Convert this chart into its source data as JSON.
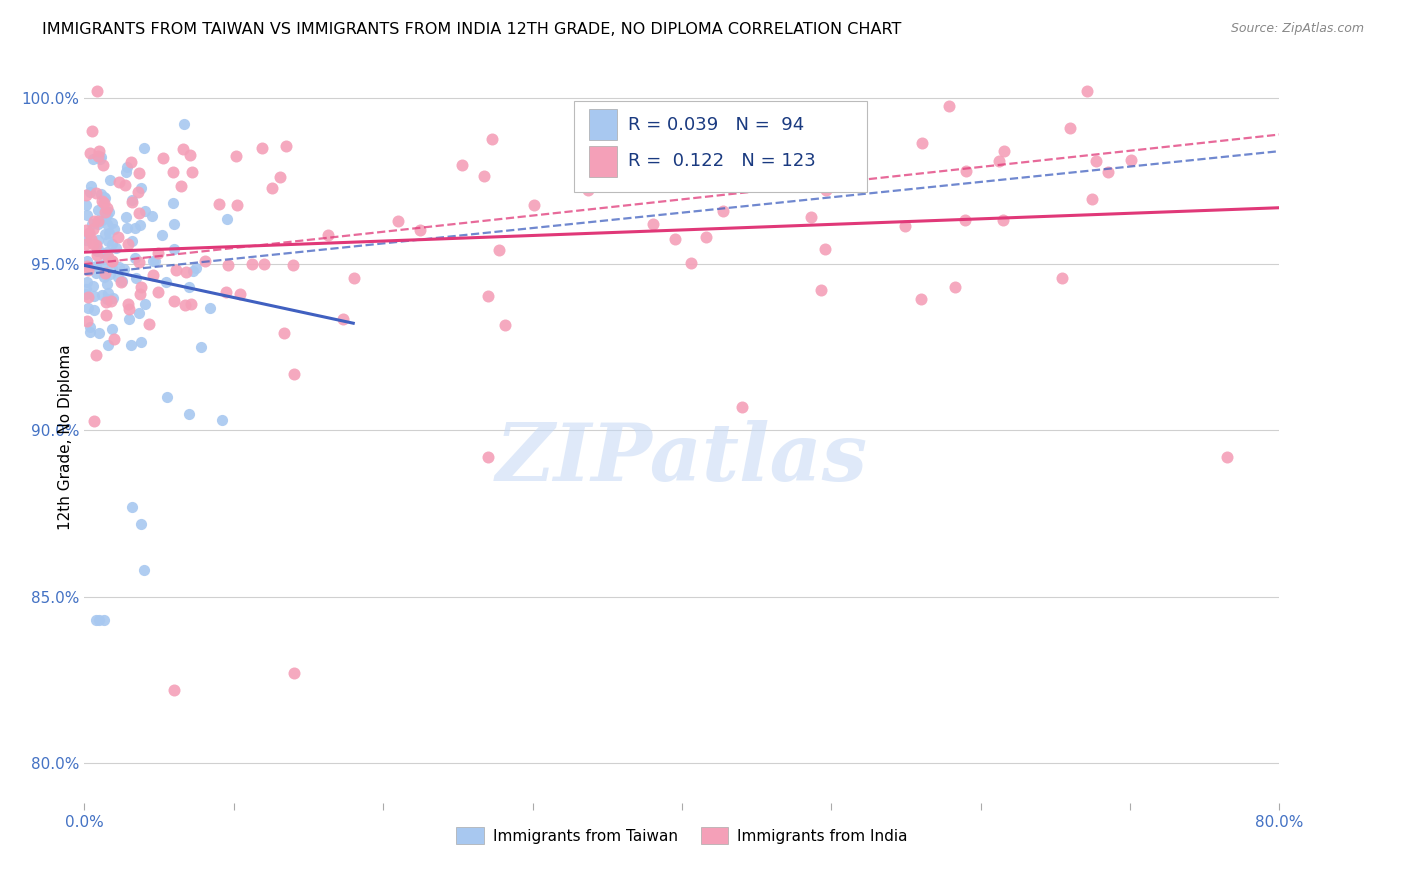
{
  "title": "IMMIGRANTS FROM TAIWAN VS IMMIGRANTS FROM INDIA 12TH GRADE, NO DIPLOMA CORRELATION CHART",
  "source": "Source: ZipAtlas.com",
  "ylabel": "12th Grade, No Diploma",
  "xlim": [
    0.0,
    0.8
  ],
  "ylim": [
    0.788,
    1.008
  ],
  "yticks": [
    0.8,
    0.85,
    0.9,
    0.95,
    1.0
  ],
  "ytick_labels": [
    "80.0%",
    "85.0%",
    "90.0%",
    "95.0%",
    "100.0%"
  ],
  "xticks": [
    0.0,
    0.1,
    0.2,
    0.3,
    0.4,
    0.5,
    0.6,
    0.7,
    0.8
  ],
  "xtick_labels": [
    "0.0%",
    "",
    "",
    "",
    "",
    "",
    "",
    "",
    "80.0%"
  ],
  "taiwan_color": "#a8c8f0",
  "india_color": "#f4a0b8",
  "taiwan_line_color": "#4060c0",
  "india_line_color": "#e03878",
  "taiwan_R": 0.039,
  "taiwan_N": 94,
  "india_R": 0.122,
  "india_N": 123,
  "watermark": "ZIPatlas",
  "background_color": "#ffffff",
  "tick_color": "#4472c4",
  "title_fontsize": 11.5
}
